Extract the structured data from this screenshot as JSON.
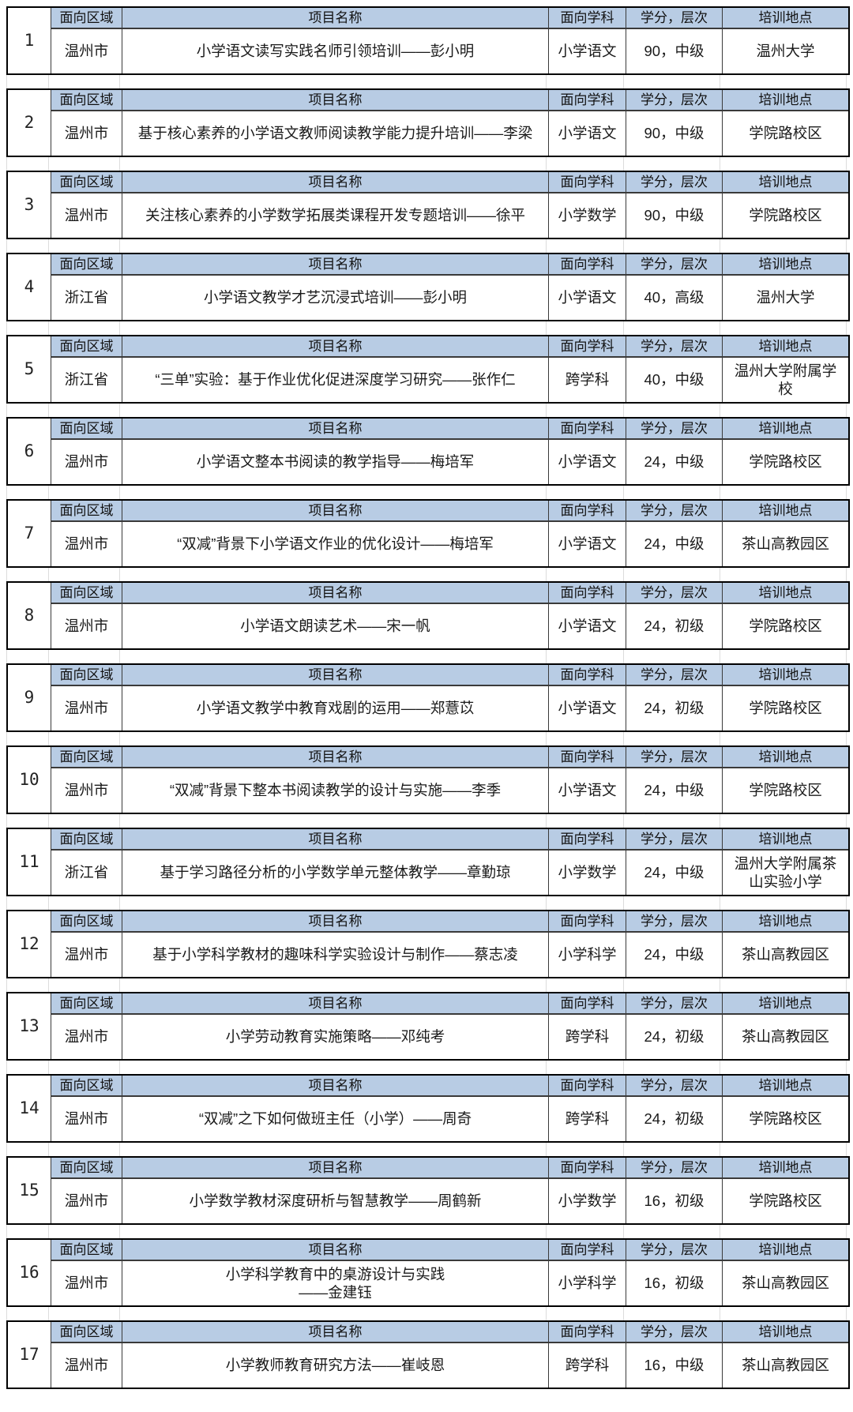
{
  "table": {
    "columns": {
      "region": "面向区域",
      "project": "项目名称",
      "subject": "面向学科",
      "credits": "学分，层次",
      "location": "培训地点"
    },
    "blocks": [
      {
        "no": "1",
        "region": "温州市",
        "project": "小学语文读写实践名师引领培训——彭小明",
        "subject": "小学语文",
        "credits": "90，中级",
        "location": "温州大学"
      },
      {
        "no": "2",
        "region": "温州市",
        "project": "基于核心素养的小学语文教师阅读教学能力提升培训——李梁",
        "subject": "小学语文",
        "credits": "90，中级",
        "location": "学院路校区"
      },
      {
        "no": "3",
        "region": "温州市",
        "project": "关注核心素养的小学数学拓展类课程开发专题培训——徐平",
        "subject": "小学数学",
        "credits": "90，中级",
        "location": "学院路校区"
      },
      {
        "no": "4",
        "region": "浙江省",
        "project": "小学语文教学才艺沉浸式培训——彭小明",
        "subject": "小学语文",
        "credits": "40，高级",
        "location": "温州大学"
      },
      {
        "no": "5",
        "region": "浙江省",
        "project": "“三单”实验：基于作业优化促进深度学习研究——张作仁",
        "subject": "跨学科",
        "credits": "40，中级",
        "location": "温州大学附属学校"
      },
      {
        "no": "6",
        "region": "温州市",
        "project": "小学语文整本书阅读的教学指导——梅培军",
        "subject": "小学语文",
        "credits": "24，中级",
        "location": "学院路校区"
      },
      {
        "no": "7",
        "region": "温州市",
        "project": "“双减”背景下小学语文作业的优化设计——梅培军",
        "subject": "小学语文",
        "credits": "24，中级",
        "location": "茶山高教园区"
      },
      {
        "no": "8",
        "region": "温州市",
        "project": "小学语文朗读艺术——宋一帆",
        "subject": "小学语文",
        "credits": "24，初级",
        "location": "学院路校区"
      },
      {
        "no": "9",
        "region": "温州市",
        "project": "小学语文教学中教育戏剧的运用——郑薏苡",
        "subject": "小学语文",
        "credits": "24，初级",
        "location": "学院路校区"
      },
      {
        "no": "10",
        "region": "温州市",
        "project": "“双减”背景下整本书阅读教学的设计与实施——李季",
        "subject": "小学语文",
        "credits": "24，中级",
        "location": "学院路校区"
      },
      {
        "no": "11",
        "region": "浙江省",
        "project": "基于学习路径分析的小学数学单元整体教学——章勤琼",
        "subject": "小学数学",
        "credits": "24，中级",
        "location": "温州大学附属茶山实验小学"
      },
      {
        "no": "12",
        "region": "温州市",
        "project": "基于小学科学教材的趣味科学实验设计与制作——蔡志凌",
        "subject": "小学科学",
        "credits": "24，中级",
        "location": "茶山高教园区"
      },
      {
        "no": "13",
        "region": "温州市",
        "project": "小学劳动教育实施策略——邓纯考",
        "subject": "跨学科",
        "credits": "24，初级",
        "location": "茶山高教园区"
      },
      {
        "no": "14",
        "region": "温州市",
        "project": "“双减”之下如何做班主任（小学）——周奇",
        "subject": "跨学科",
        "credits": "24，初级",
        "location": "学院路校区"
      },
      {
        "no": "15",
        "region": "温州市",
        "project": "小学数学教材深度研析与智慧教学——周鹤新",
        "subject": "小学数学",
        "credits": "16，初级",
        "location": "学院路校区"
      },
      {
        "no": "16",
        "region": "温州市",
        "project": "小学科学教育中的桌游设计与实践\n——金建钰",
        "subject": "小学科学",
        "credits": "16，初级",
        "location": "茶山高教园区"
      },
      {
        "no": "17",
        "region": "温州市",
        "project": "小学教师教育研究方法——崔岐恩",
        "subject": "跨学科",
        "credits": "16，中级",
        "location": "茶山高教园区"
      }
    ],
    "colors": {
      "header_bg": "#b8cce4",
      "outer_border": "#000000",
      "inner_border": "#3a3a3a",
      "gap_gridline": "#dcdcdc"
    }
  }
}
